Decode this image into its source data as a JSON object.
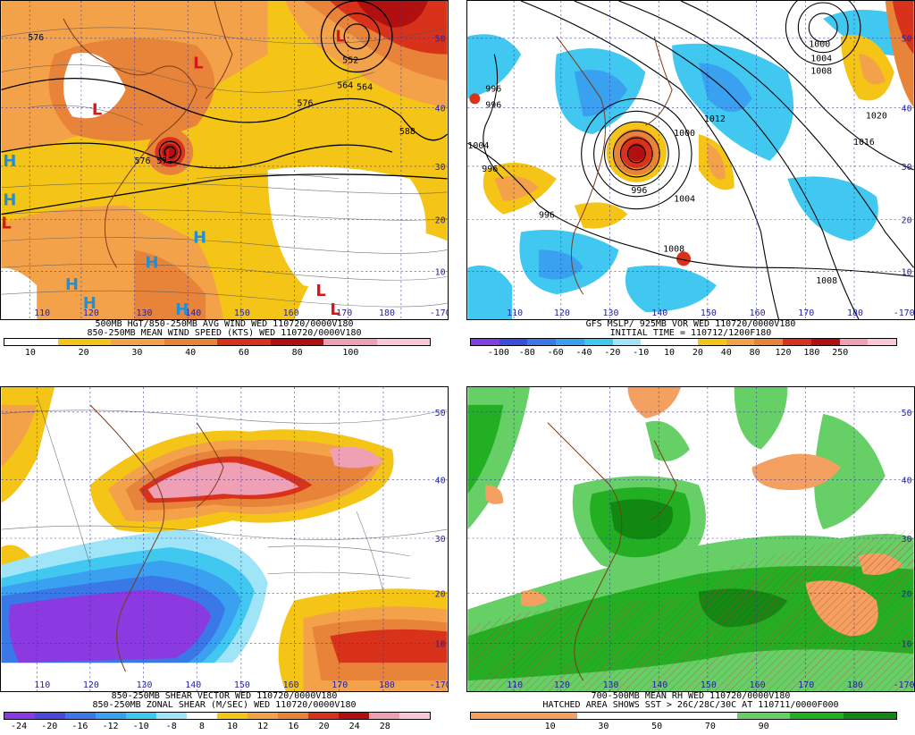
{
  "panels": [
    {
      "id": "top-left",
      "caption1": "500MB HGT/850-250MB AVG WIND WED 110720/0000V180",
      "caption2": "850-250MB MEAN WIND SPEED (KTS) WED 110720/0000V180",
      "colorbar": {
        "colors": [
          "#ffffff",
          "#f4c417",
          "#f4a24a",
          "#e8833a",
          "#d8321a",
          "#b01010",
          "#f0a0b4",
          "#f8c8d4"
        ],
        "ticks": [
          "10",
          "20",
          "30",
          "40",
          "60",
          "80",
          "100"
        ]
      },
      "lon_labels": [
        "110",
        "120",
        "130",
        "140",
        "150",
        "160",
        "170",
        "180",
        "-170"
      ],
      "lat_labels": [
        "50",
        "40",
        "30",
        "20",
        "10"
      ],
      "contour_labels": [
        "576",
        "576",
        "552",
        "564",
        "576",
        "588",
        "576",
        "564"
      ],
      "symbols": [
        {
          "t": "L",
          "c": "#d81818"
        },
        {
          "t": "L",
          "c": "#d81818"
        },
        {
          "t": "L",
          "c": "#d81818"
        },
        {
          "t": "L",
          "c": "#d81818"
        },
        {
          "t": "L",
          "c": "#d81818"
        },
        {
          "t": "L",
          "c": "#d81818"
        },
        {
          "t": "L",
          "c": "#d81818"
        },
        {
          "t": "H",
          "c": "#1e90d8"
        },
        {
          "t": "H",
          "c": "#1e90d8"
        },
        {
          "t": "H",
          "c": "#1e90d8"
        },
        {
          "t": "H",
          "c": "#1e90d8"
        },
        {
          "t": "H",
          "c": "#1e90d8"
        },
        {
          "t": "H",
          "c": "#1e90d8"
        },
        {
          "t": "H",
          "c": "#1e90d8"
        }
      ]
    },
    {
      "id": "top-right",
      "caption1": "GFS MSLP/ 925MB VOR WED 110720/0000V180",
      "caption2": "INITIAL TIME = 110712/1200F180",
      "colorbar": {
        "colors": [
          "#8040e0",
          "#3a4ed8",
          "#3a78e8",
          "#3aa0f0",
          "#40c8f0",
          "#a0e4f8",
          "#ffffff",
          "#ffffff",
          "#f4c417",
          "#f4a24a",
          "#e8833a",
          "#d8321a",
          "#b01010",
          "#f0a0b4",
          "#f8c8d4"
        ],
        "ticks": [
          "-100",
          "-80",
          "-60",
          "-40",
          "-20",
          "-10",
          "10",
          "20",
          "40",
          "80",
          "120",
          "180",
          "250"
        ]
      },
      "lon_labels": [
        "110",
        "120",
        "130",
        "140",
        "150",
        "160",
        "170",
        "180",
        "-170"
      ],
      "lat_labels": [
        "50",
        "40",
        "30",
        "20",
        "10"
      ],
      "isobar_labels": [
        "1000",
        "1004",
        "1008",
        "1012",
        "1016",
        "1020",
        "996",
        "996",
        "1004",
        "996",
        "1000",
        "996",
        "996",
        "1004",
        "1008",
        "1008"
      ]
    },
    {
      "id": "bottom-left",
      "caption1": "850-250MB SHEAR VECTOR WED 110720/0000V180",
      "caption2": "850-250MB ZONAL SHEAR (M/SEC) WED 110720/0000V180",
      "colorbar": {
        "colors": [
          "#8a3ae0",
          "#4a4ad8",
          "#3a78e8",
          "#3aa0f0",
          "#40c8f0",
          "#a0e4f8",
          "#ffffff",
          "#f4c417",
          "#f4a24a",
          "#e8833a",
          "#d8321a",
          "#b01010",
          "#f0a0b4",
          "#f8c8d4"
        ],
        "ticks": [
          "-24",
          "-20",
          "-16",
          "-12",
          "-10",
          "-8",
          "8",
          "10",
          "12",
          "16",
          "20",
          "24",
          "28"
        ]
      },
      "lon_labels": [
        "110",
        "120",
        "130",
        "140",
        "150",
        "160",
        "170",
        "180",
        "-170"
      ],
      "lat_labels": [
        "50",
        "40",
        "30",
        "20",
        "10"
      ]
    },
    {
      "id": "bottom-right",
      "caption1": "700-500MB MEAN RH WED 110720/0000V180",
      "caption2": "HATCHED AREA SHOWS SST > 26C/28C/30C AT 110711/0000F000",
      "colorbar": {
        "colors": [
          "#f4a060",
          "#f4a060",
          "#ffffff",
          "#ffffff",
          "#ffffff",
          "#66d066",
          "#22b022",
          "#118811"
        ],
        "ticks": [
          "10",
          "30",
          "50",
          "70",
          "90"
        ]
      },
      "lon_labels": [
        "110",
        "120",
        "130",
        "140",
        "150",
        "160",
        "170",
        "180",
        "-170"
      ],
      "lat_labels": [
        "50",
        "40",
        "30",
        "20",
        "10"
      ]
    }
  ]
}
